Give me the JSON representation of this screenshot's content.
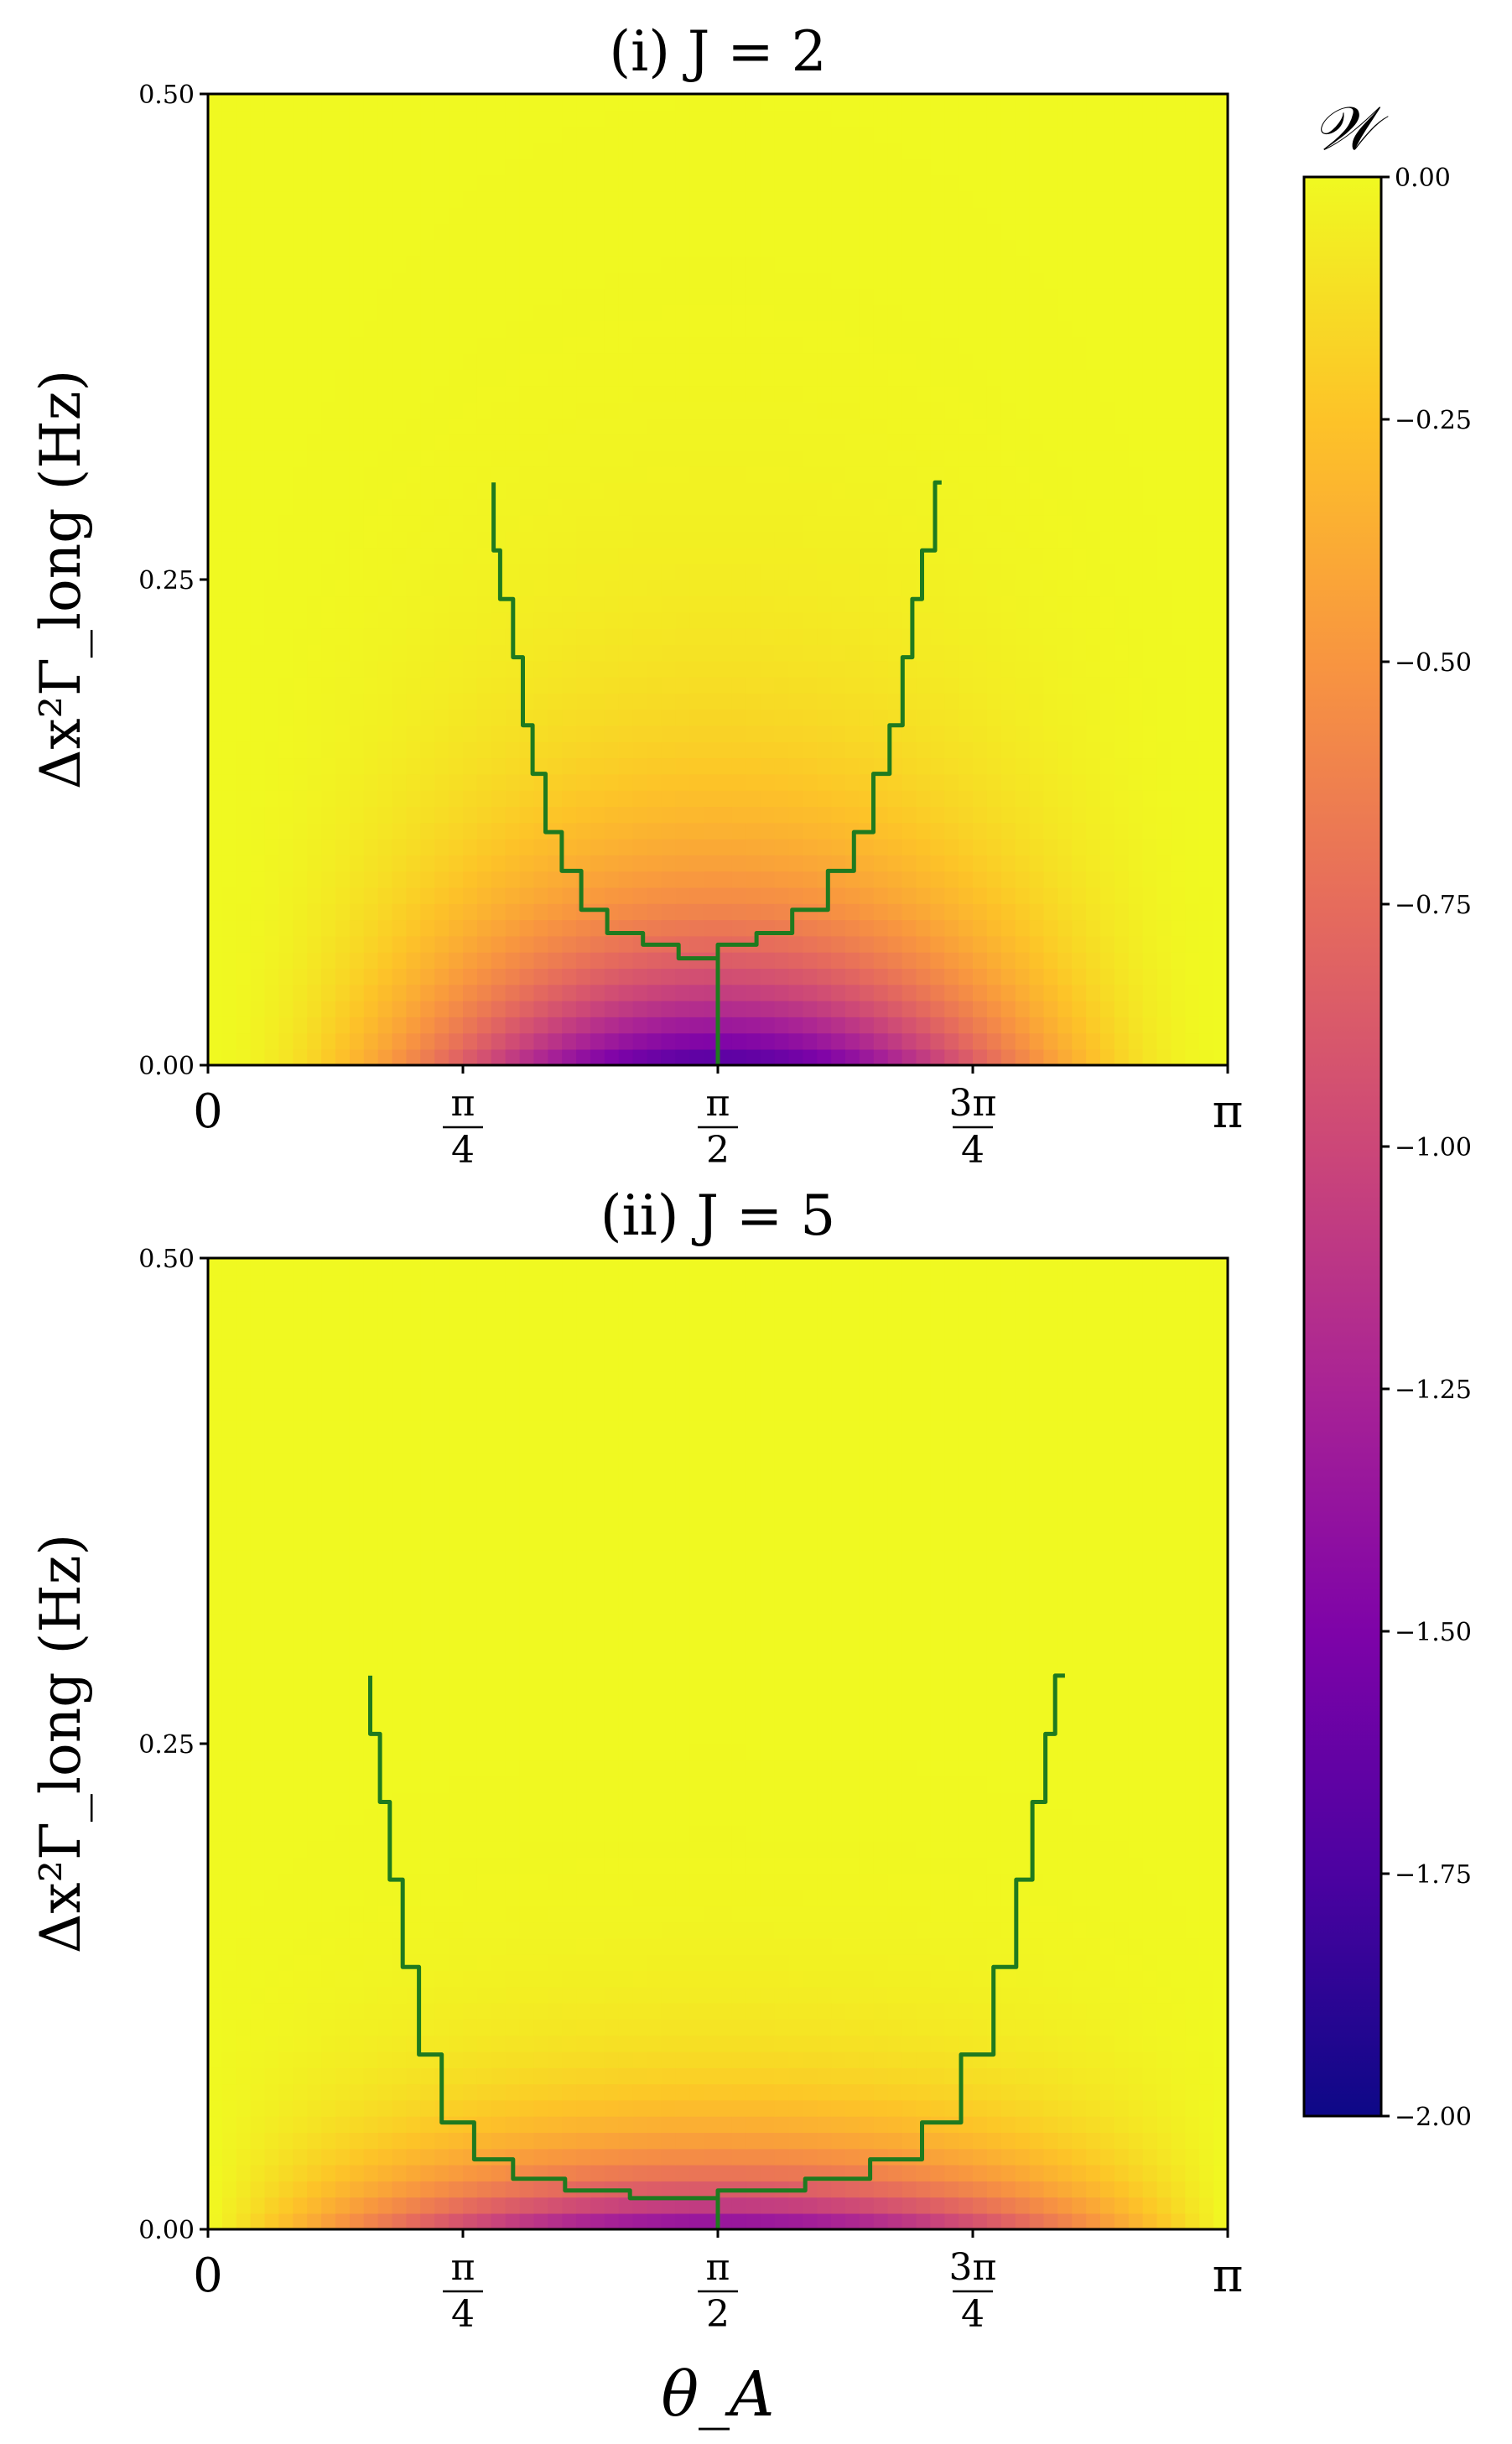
{
  "chart_data": [
    {
      "type": "heatmap",
      "title": "(i) J = 2",
      "J": 2,
      "xlabel": "θ_A",
      "ylabel": "Δx²Γ_long (Hz)",
      "xlim": [
        0,
        3.14159
      ],
      "ylim": [
        0,
        0.5
      ],
      "xticks": [
        {
          "value": 0,
          "label": "0"
        },
        {
          "value": 0.7854,
          "num": "π",
          "den": "4"
        },
        {
          "value": 1.5708,
          "num": "π",
          "den": "2"
        },
        {
          "value": 2.3562,
          "num": "3π",
          "den": "4"
        },
        {
          "value": 3.14159,
          "label": "π"
        }
      ],
      "yticks": [
        {
          "value": 0.0,
          "label": "0.00"
        },
        {
          "value": 0.25,
          "label": "0.25"
        },
        {
          "value": 0.5,
          "label": "0.50"
        }
      ],
      "boundary": {
        "color": "#1f7a1f",
        "left": [
          [
            0.88,
            0.3
          ],
          [
            0.9,
            0.265
          ],
          [
            0.94,
            0.24
          ],
          [
            0.97,
            0.21
          ],
          [
            1.0,
            0.175
          ],
          [
            1.04,
            0.15
          ],
          [
            1.09,
            0.12
          ],
          [
            1.15,
            0.1
          ],
          [
            1.23,
            0.08
          ],
          [
            1.34,
            0.068
          ],
          [
            1.45,
            0.062
          ],
          [
            1.5708,
            0.055
          ]
        ],
        "right": [
          [
            1.5708,
            0.055
          ],
          [
            1.69,
            0.062
          ],
          [
            1.8,
            0.068
          ],
          [
            1.91,
            0.08
          ],
          [
            1.99,
            0.1
          ],
          [
            2.05,
            0.12
          ],
          [
            2.1,
            0.15
          ],
          [
            2.14,
            0.175
          ],
          [
            2.17,
            0.21
          ],
          [
            2.2,
            0.24
          ],
          [
            2.24,
            0.265
          ],
          [
            2.26,
            0.3
          ]
        ],
        "stem": [
          [
            1.5708,
            0.055
          ],
          [
            1.5708,
            0.0
          ]
        ]
      }
    },
    {
      "type": "heatmap",
      "title": "(ii) J = 5",
      "J": 5,
      "xlabel": "θ_A",
      "ylabel": "Δx²Γ_long (Hz)",
      "xlim": [
        0,
        3.14159
      ],
      "ylim": [
        0,
        0.5
      ],
      "xticks": [
        {
          "value": 0,
          "label": "0"
        },
        {
          "value": 0.7854,
          "num": "π",
          "den": "4"
        },
        {
          "value": 1.5708,
          "num": "π",
          "den": "2"
        },
        {
          "value": 2.3562,
          "num": "3π",
          "den": "4"
        },
        {
          "value": 3.14159,
          "label": "π"
        }
      ],
      "yticks": [
        {
          "value": 0.0,
          "label": "0.00"
        },
        {
          "value": 0.25,
          "label": "0.25"
        },
        {
          "value": 0.5,
          "label": "0.50"
        }
      ],
      "boundary": {
        "color": "#1f7a1f",
        "left": [
          [
            0.5,
            0.285
          ],
          [
            0.53,
            0.255
          ],
          [
            0.56,
            0.22
          ],
          [
            0.6,
            0.18
          ],
          [
            0.65,
            0.135
          ],
          [
            0.72,
            0.09
          ],
          [
            0.82,
            0.055
          ],
          [
            0.94,
            0.036
          ],
          [
            1.1,
            0.026
          ],
          [
            1.3,
            0.02
          ],
          [
            1.5708,
            0.016
          ]
        ],
        "right": [
          [
            1.5708,
            0.016
          ],
          [
            1.84,
            0.02
          ],
          [
            2.04,
            0.026
          ],
          [
            2.2,
            0.036
          ],
          [
            2.32,
            0.055
          ],
          [
            2.42,
            0.09
          ],
          [
            2.49,
            0.135
          ],
          [
            2.54,
            0.18
          ],
          [
            2.58,
            0.22
          ],
          [
            2.61,
            0.255
          ],
          [
            2.64,
            0.285
          ]
        ],
        "stem": [
          [
            1.5708,
            0.016
          ],
          [
            1.5708,
            0.0
          ]
        ]
      }
    }
  ],
  "colorbar": {
    "label": "𝒲",
    "colormap": "plasma",
    "range": [
      -2.0,
      0.0
    ],
    "ticks": [
      {
        "value": 0.0,
        "label": "0.00"
      },
      {
        "value": -0.25,
        "label": "−0.25"
      },
      {
        "value": -0.5,
        "label": "−0.50"
      },
      {
        "value": -0.75,
        "label": "−0.75"
      },
      {
        "value": -1.0,
        "label": "−1.00"
      },
      {
        "value": -1.25,
        "label": "−1.25"
      },
      {
        "value": -1.5,
        "label": "−1.50"
      },
      {
        "value": -1.75,
        "label": "−1.75"
      },
      {
        "value": -2.0,
        "label": "−2.00"
      }
    ]
  }
}
